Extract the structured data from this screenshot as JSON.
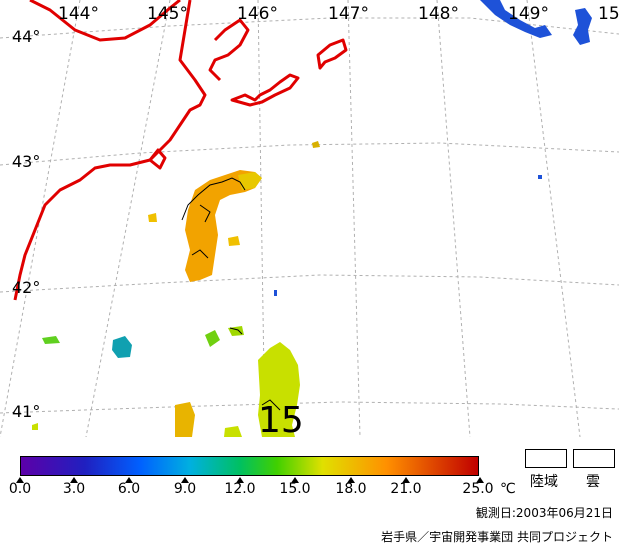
{
  "map": {
    "lon_labels": [
      "144°",
      "145°",
      "146°",
      "147°",
      "148°",
      "149°",
      "15"
    ],
    "lat_labels": [
      "44°",
      "43°",
      "42°",
      "41°"
    ],
    "contour_label": "15",
    "colors": {
      "coast": "#e00000",
      "grid": "#b0b0b0",
      "cloud_blue": "#1e52d8",
      "warm": "#f2a300",
      "mild": "#c8e000"
    }
  },
  "legend": {
    "tick_labels": [
      "0.0",
      "3.0",
      "6.0",
      "9.0",
      "12.0",
      "15.0",
      "18.0",
      "21.0",
      "25.0"
    ],
    "unit": "℃",
    "land_label": "陸域",
    "cloud_label": "雲",
    "gradient": [
      "#5c00a8",
      "#2020c0",
      "#0060ff",
      "#00b0e0",
      "#00c060",
      "#40d000",
      "#e0e000",
      "#ff9000",
      "#c00000"
    ]
  },
  "footer": {
    "date": "観測日:2003年06月21日",
    "credit": "岩手県／宇宙開発事業団 共同プロジェクト"
  }
}
